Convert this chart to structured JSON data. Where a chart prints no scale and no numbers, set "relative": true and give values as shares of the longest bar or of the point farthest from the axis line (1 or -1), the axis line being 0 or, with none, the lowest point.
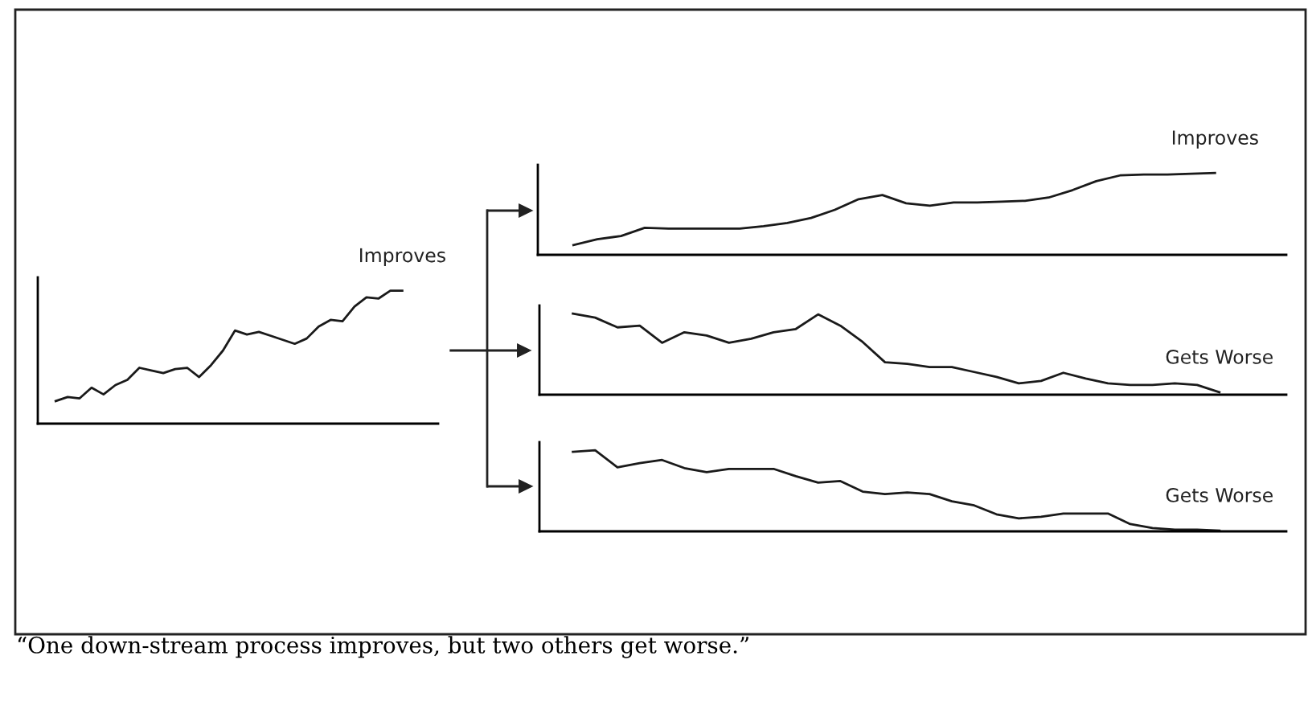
{
  "chart_data": [
    {
      "type": "line",
      "relative": true,
      "categories": [
        null,
        null,
        null,
        null,
        null,
        null,
        null,
        null,
        null,
        null,
        null,
        null,
        null,
        null,
        null,
        null,
        null,
        null,
        null,
        null,
        null,
        null,
        null,
        null,
        null,
        null,
        null,
        null,
        null,
        null
      ],
      "series": [
        {
          "name": "Improves",
          "color": "#1a1a1a",
          "values": [
            0.17,
            0.2,
            0.19,
            0.27,
            0.22,
            0.29,
            0.33,
            0.42,
            0.4,
            0.38,
            0.41,
            0.42,
            0.35,
            0.44,
            0.55,
            0.7,
            0.67,
            0.69,
            0.66,
            0.63,
            0.6,
            0.64,
            0.73,
            0.78,
            0.77,
            0.88,
            0.95,
            0.94,
            1.0,
            1.0
          ]
        }
      ],
      "annotations": [
        "“One down-stream process improves, but two others get worse.”"
      ]
    },
    {
      "type": "line",
      "relative": true,
      "categories": [
        null,
        null,
        null,
        null,
        null,
        null,
        null,
        null,
        null,
        null,
        null,
        null,
        null,
        null,
        null,
        null,
        null,
        null,
        null,
        null,
        null,
        null,
        null,
        null,
        null,
        null,
        null,
        null
      ],
      "series": [
        {
          "name": "Improves",
          "color": "#1a1a1a",
          "values": [
            0.12,
            0.19,
            0.23,
            0.33,
            0.32,
            0.32,
            0.32,
            0.32,
            0.35,
            0.39,
            0.45,
            0.55,
            0.68,
            0.73,
            0.63,
            0.6,
            0.64,
            0.64,
            0.65,
            0.66,
            0.7,
            0.79,
            0.9,
            0.97,
            0.98,
            0.98,
            0.99,
            1.0
          ]
        }
      ]
    },
    {
      "type": "line",
      "relative": true,
      "categories": [
        null,
        null,
        null,
        null,
        null,
        null,
        null,
        null,
        null,
        null,
        null,
        null,
        null,
        null,
        null,
        null,
        null,
        null,
        null,
        null,
        null,
        null,
        null,
        null,
        null,
        null,
        null,
        null,
        null,
        null
      ],
      "series": [
        {
          "name": "Gets Worse",
          "color": "#1a1a1a",
          "values": [
            1.0,
            0.95,
            0.83,
            0.85,
            0.64,
            0.77,
            0.73,
            0.64,
            0.69,
            0.77,
            0.81,
            0.99,
            0.85,
            0.65,
            0.4,
            0.38,
            0.34,
            0.34,
            0.28,
            0.22,
            0.14,
            0.17,
            0.27,
            0.2,
            0.14,
            0.12,
            0.12,
            0.14,
            0.12,
            0.03
          ]
        }
      ]
    },
    {
      "type": "line",
      "relative": true,
      "categories": [
        null,
        null,
        null,
        null,
        null,
        null,
        null,
        null,
        null,
        null,
        null,
        null,
        null,
        null,
        null,
        null,
        null,
        null,
        null,
        null,
        null,
        null,
        null,
        null,
        null,
        null,
        null,
        null,
        null,
        null
      ],
      "series": [
        {
          "name": "Gets Worse",
          "color": "#1a1a1a",
          "values": [
            0.98,
            1.0,
            0.79,
            0.84,
            0.88,
            0.78,
            0.73,
            0.77,
            0.77,
            0.77,
            0.68,
            0.6,
            0.62,
            0.49,
            0.46,
            0.48,
            0.46,
            0.37,
            0.32,
            0.21,
            0.16,
            0.18,
            0.22,
            0.22,
            0.22,
            0.09,
            0.04,
            0.02,
            0.02,
            0.01
          ]
        }
      ]
    }
  ]
}
